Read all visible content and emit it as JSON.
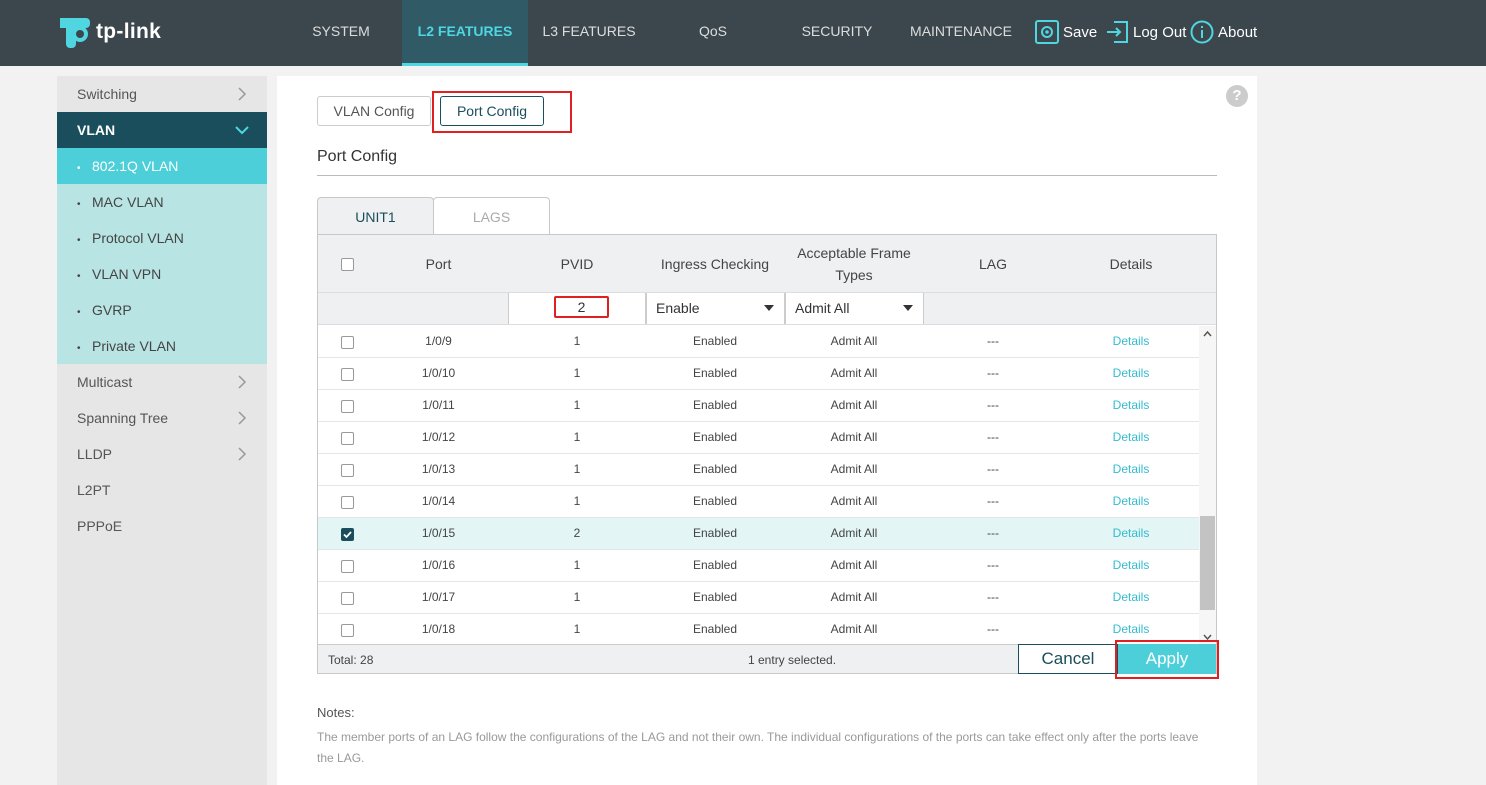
{
  "brand": {
    "name": "tp-link",
    "accent": "#4fd6e0"
  },
  "nav": {
    "items": [
      {
        "label": "SYSTEM"
      },
      {
        "label": "L2 FEATURES"
      },
      {
        "label": "L3 FEATURES"
      },
      {
        "label": "QoS"
      },
      {
        "label": "SECURITY"
      },
      {
        "label": "MAINTENANCE"
      }
    ],
    "active": "L2 FEATURES",
    "save": "Save",
    "logout": "Log Out",
    "about": "About"
  },
  "sidebar": {
    "items": [
      {
        "label": "Switching",
        "icon": "chevron-right-icon"
      },
      {
        "label": "VLAN",
        "icon": "chevron-down-icon"
      },
      {
        "label": "Multicast",
        "icon": "chevron-right-icon"
      },
      {
        "label": "Spanning Tree",
        "icon": "chevron-right-icon"
      },
      {
        "label": "LLDP",
        "icon": "chevron-right-icon"
      },
      {
        "label": "L2PT"
      },
      {
        "label": "PPPoE"
      }
    ],
    "vlan_sub": [
      {
        "label": "802.1Q VLAN"
      },
      {
        "label": "MAC VLAN"
      },
      {
        "label": "Protocol VLAN"
      },
      {
        "label": "VLAN VPN"
      },
      {
        "label": "GVRP"
      },
      {
        "label": "Private VLAN"
      }
    ]
  },
  "tabs": {
    "vlan_config": "VLAN Config",
    "port_config": "Port Config"
  },
  "section_title": "Port Config",
  "unit_tabs": {
    "unit1": "UNIT1",
    "lags": "LAGS"
  },
  "table": {
    "headers": {
      "port": "Port",
      "pvid": "PVID",
      "ingress": "Ingress Checking",
      "frame_line1": "Acceptable Frame",
      "frame_line2": "Types",
      "lag": "LAG",
      "details": "Details"
    },
    "edit": {
      "pvid": "2",
      "ingress": "Enable",
      "frame": "Admit All"
    },
    "rows": [
      {
        "port": "1/0/9",
        "pvid": "1",
        "ingress": "Enabled",
        "frame": "Admit All",
        "lag": "---",
        "details": "Details"
      },
      {
        "port": "1/0/10",
        "pvid": "1",
        "ingress": "Enabled",
        "frame": "Admit All",
        "lag": "---",
        "details": "Details"
      },
      {
        "port": "1/0/11",
        "pvid": "1",
        "ingress": "Enabled",
        "frame": "Admit All",
        "lag": "---",
        "details": "Details"
      },
      {
        "port": "1/0/12",
        "pvid": "1",
        "ingress": "Enabled",
        "frame": "Admit All",
        "lag": "---",
        "details": "Details"
      },
      {
        "port": "1/0/13",
        "pvid": "1",
        "ingress": "Enabled",
        "frame": "Admit All",
        "lag": "---",
        "details": "Details"
      },
      {
        "port": "1/0/14",
        "pvid": "1",
        "ingress": "Enabled",
        "frame": "Admit All",
        "lag": "---",
        "details": "Details"
      },
      {
        "port": "1/0/15",
        "pvid": "2",
        "ingress": "Enabled",
        "frame": "Admit All",
        "lag": "---",
        "details": "Details"
      },
      {
        "port": "1/0/16",
        "pvid": "1",
        "ingress": "Enabled",
        "frame": "Admit All",
        "lag": "---",
        "details": "Details"
      },
      {
        "port": "1/0/17",
        "pvid": "1",
        "ingress": "Enabled",
        "frame": "Admit All",
        "lag": "---",
        "details": "Details"
      },
      {
        "port": "1/0/18",
        "pvid": "1",
        "ingress": "Enabled",
        "frame": "Admit All",
        "lag": "---",
        "details": "Details"
      }
    ],
    "total": "Total: 28",
    "selected_info": "1 entry selected."
  },
  "buttons": {
    "cancel": "Cancel",
    "apply": "Apply"
  },
  "notes": {
    "title": "Notes:",
    "text": "The member ports of an LAG follow the configurations of the LAG and not their own. The individual configurations of the ports can take effect only after the ports leave the LAG."
  }
}
